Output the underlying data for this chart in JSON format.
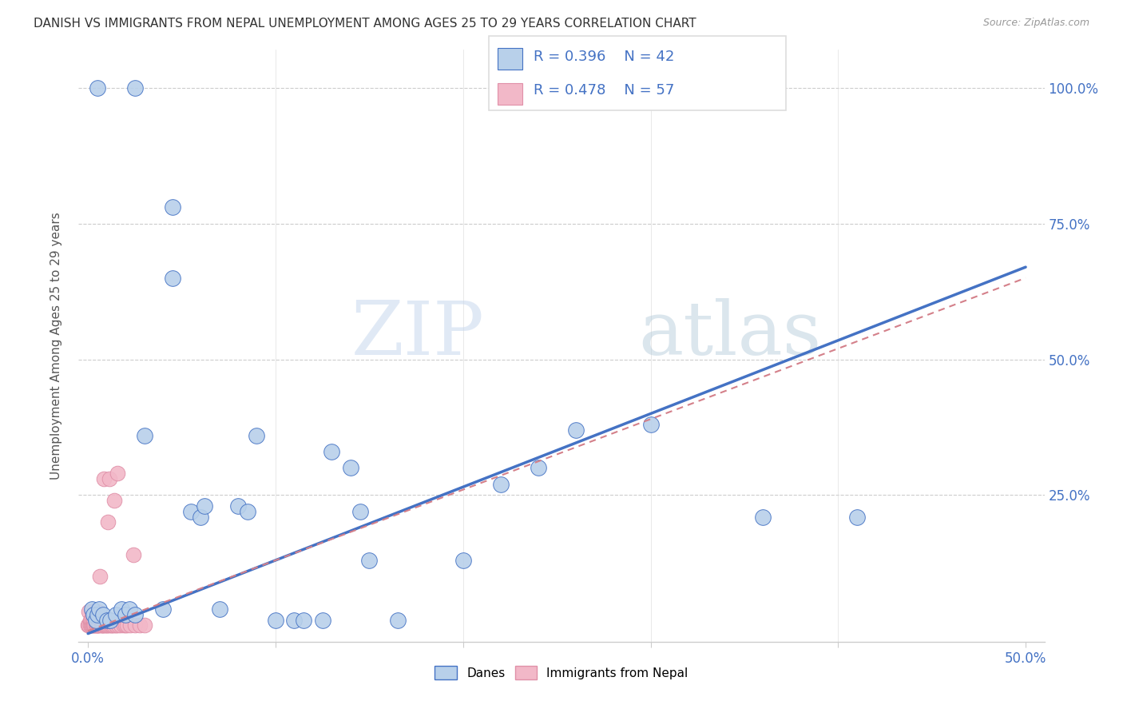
{
  "title": "DANISH VS IMMIGRANTS FROM NEPAL UNEMPLOYMENT AMONG AGES 25 TO 29 YEARS CORRELATION CHART",
  "source": "Source: ZipAtlas.com",
  "ylabel": "Unemployment Among Ages 25 to 29 years",
  "danes_R": "R = 0.396",
  "danes_N": "N = 42",
  "nepal_R": "R = 0.478",
  "nepal_N": "N = 57",
  "danes_color": "#b8d0ea",
  "nepal_color": "#f2b8c8",
  "danes_line_color": "#4472c4",
  "nepal_line_color": "#d4808a",
  "danes_scatter": [
    [
      0.5,
      100.0
    ],
    [
      2.5,
      100.0
    ],
    [
      4.5,
      78.0
    ],
    [
      4.5,
      65.0
    ],
    [
      0.2,
      4.0
    ],
    [
      0.3,
      3.0
    ],
    [
      0.4,
      2.0
    ],
    [
      0.5,
      3.0
    ],
    [
      0.6,
      4.0
    ],
    [
      0.8,
      3.0
    ],
    [
      1.0,
      2.0
    ],
    [
      1.2,
      2.0
    ],
    [
      1.5,
      3.0
    ],
    [
      1.8,
      4.0
    ],
    [
      2.0,
      3.0
    ],
    [
      2.2,
      4.0
    ],
    [
      2.5,
      3.0
    ],
    [
      3.0,
      36.0
    ],
    [
      4.0,
      4.0
    ],
    [
      5.5,
      22.0
    ],
    [
      6.0,
      21.0
    ],
    [
      6.2,
      23.0
    ],
    [
      7.0,
      4.0
    ],
    [
      8.0,
      23.0
    ],
    [
      8.5,
      22.0
    ],
    [
      9.0,
      36.0
    ],
    [
      10.0,
      2.0
    ],
    [
      11.0,
      2.0
    ],
    [
      11.5,
      2.0
    ],
    [
      12.5,
      2.0
    ],
    [
      13.0,
      33.0
    ],
    [
      14.0,
      30.0
    ],
    [
      14.5,
      22.0
    ],
    [
      15.0,
      13.0
    ],
    [
      16.5,
      2.0
    ],
    [
      20.0,
      13.0
    ],
    [
      22.0,
      27.0
    ],
    [
      24.0,
      30.0
    ],
    [
      26.0,
      37.0
    ],
    [
      30.0,
      38.0
    ],
    [
      36.0,
      21.0
    ],
    [
      41.0,
      21.0
    ]
  ],
  "nepal_scatter": [
    [
      0.0,
      1.0
    ],
    [
      0.05,
      3.5
    ],
    [
      0.05,
      1.0
    ],
    [
      0.1,
      2.0
    ],
    [
      0.1,
      1.0
    ],
    [
      0.15,
      1.0
    ],
    [
      0.15,
      2.0
    ],
    [
      0.2,
      1.0
    ],
    [
      0.2,
      3.5
    ],
    [
      0.25,
      1.0
    ],
    [
      0.25,
      2.0
    ],
    [
      0.25,
      3.5
    ],
    [
      0.3,
      1.0
    ],
    [
      0.3,
      2.0
    ],
    [
      0.35,
      1.0
    ],
    [
      0.35,
      1.0
    ],
    [
      0.4,
      1.0
    ],
    [
      0.4,
      3.5
    ],
    [
      0.45,
      1.0
    ],
    [
      0.45,
      1.0
    ],
    [
      0.5,
      1.0
    ],
    [
      0.5,
      2.5
    ],
    [
      0.5,
      3.5
    ],
    [
      0.55,
      1.0
    ],
    [
      0.55,
      1.0
    ],
    [
      0.6,
      1.0
    ],
    [
      0.65,
      10.0
    ],
    [
      0.7,
      1.0
    ],
    [
      0.75,
      1.0
    ],
    [
      0.75,
      1.0
    ],
    [
      0.8,
      1.0
    ],
    [
      0.85,
      28.0
    ],
    [
      0.9,
      1.0
    ],
    [
      0.95,
      1.0
    ],
    [
      1.0,
      1.0
    ],
    [
      1.0,
      1.0
    ],
    [
      1.05,
      20.0
    ],
    [
      1.1,
      1.0
    ],
    [
      1.15,
      28.0
    ],
    [
      1.2,
      1.0
    ],
    [
      1.25,
      1.0
    ],
    [
      1.25,
      1.0
    ],
    [
      1.35,
      1.0
    ],
    [
      1.4,
      24.0
    ],
    [
      1.5,
      1.0
    ],
    [
      1.5,
      1.0
    ],
    [
      1.55,
      29.0
    ],
    [
      1.6,
      1.0
    ],
    [
      1.75,
      1.0
    ],
    [
      1.9,
      1.0
    ],
    [
      2.0,
      1.0
    ],
    [
      2.1,
      1.0
    ],
    [
      2.25,
      1.0
    ],
    [
      2.4,
      14.0
    ],
    [
      2.5,
      1.0
    ],
    [
      2.75,
      1.0
    ],
    [
      3.0,
      1.0
    ]
  ],
  "danes_trend": {
    "slope": 1.35,
    "intercept": -0.5
  },
  "nepal_trend": {
    "slope": 1.3,
    "intercept": 0.0
  },
  "xlim": [
    0.0,
    50.0
  ],
  "ylim": [
    0.0,
    105.0
  ],
  "x_ticks": [
    0.0,
    10.0,
    20.0,
    30.0,
    40.0,
    50.0
  ],
  "y_ticks": [
    0.0,
    25.0,
    50.0,
    75.0,
    100.0
  ],
  "watermark_zip": "ZIP",
  "watermark_atlas": "atlas",
  "background_color": "#ffffff"
}
